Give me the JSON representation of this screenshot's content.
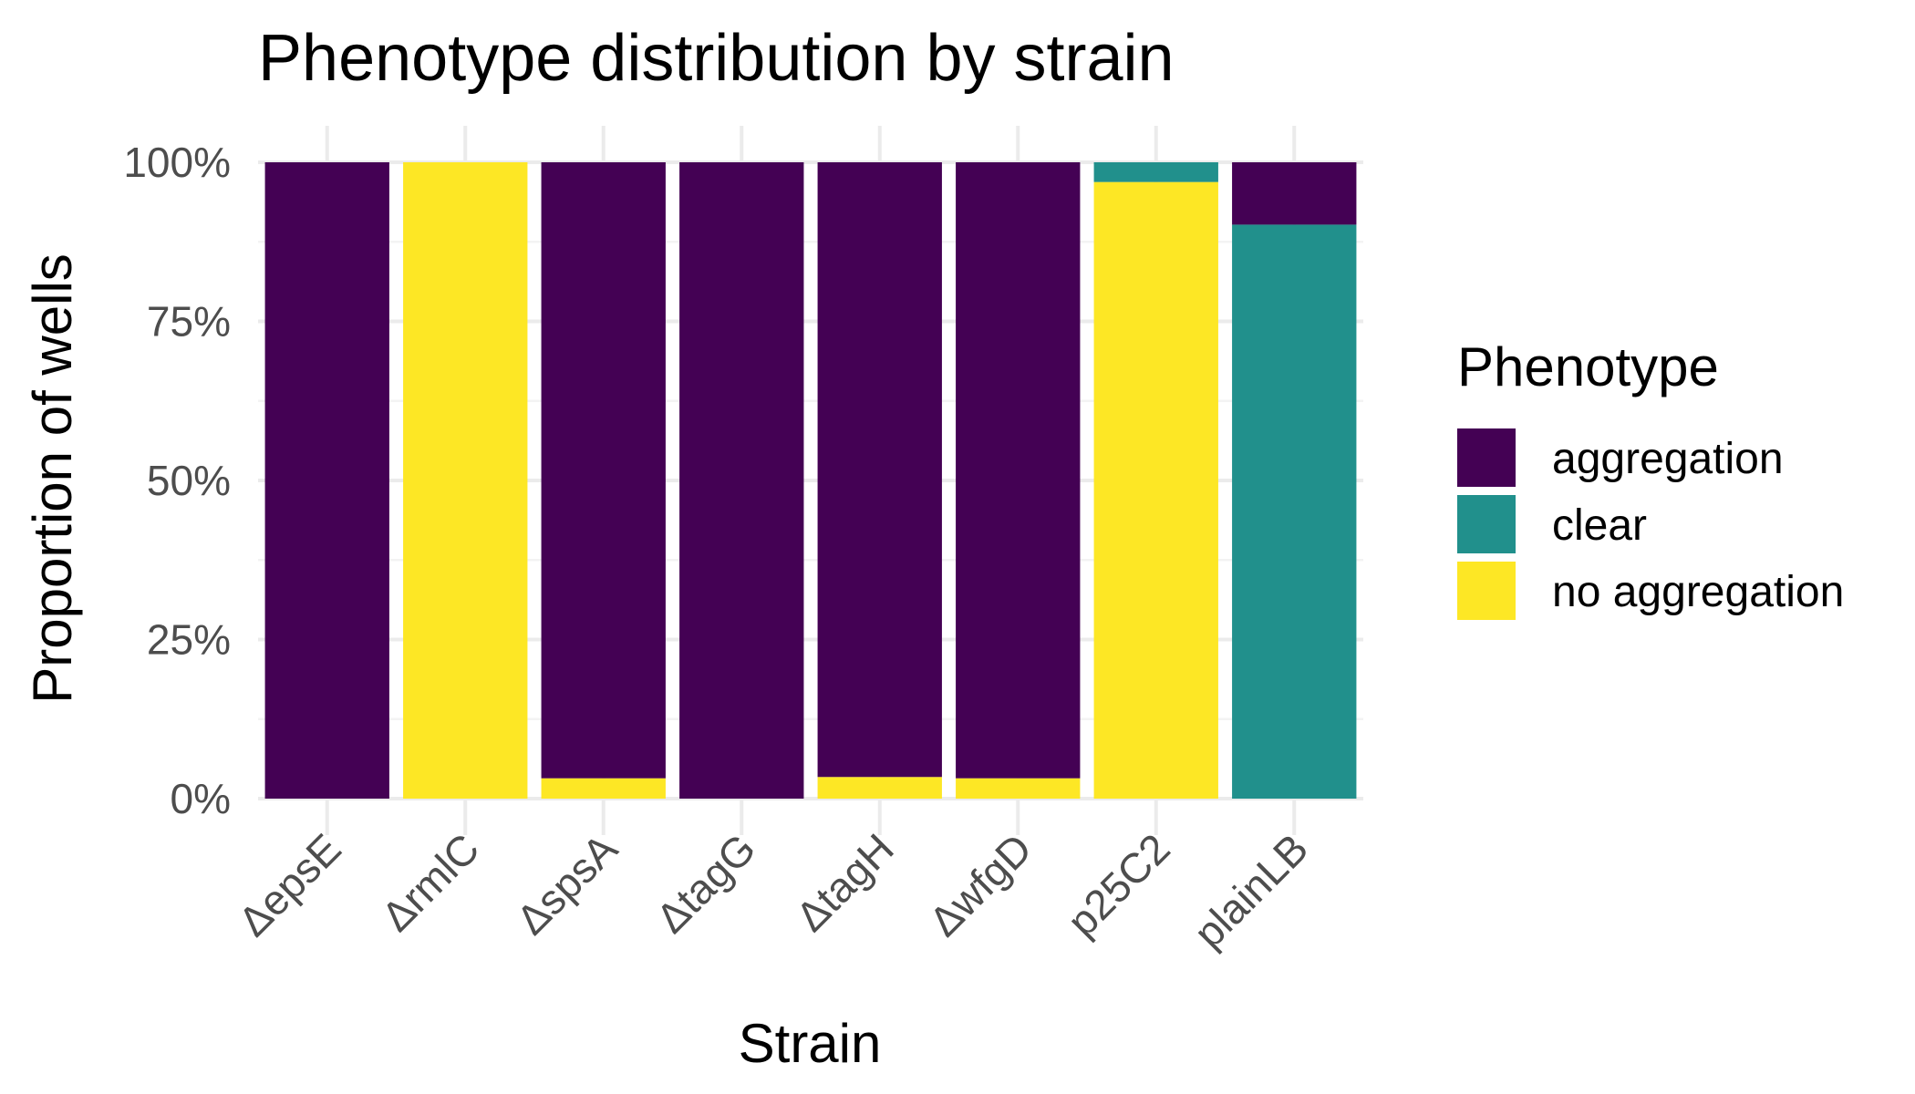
{
  "chart_data": {
    "type": "bar",
    "stacked": true,
    "title": "Phenotype distribution by strain",
    "xlabel": "Strain",
    "ylabel": "Proportion of wells",
    "ylim": [
      0,
      1
    ],
    "y_ticks": [
      "0%",
      "25%",
      "50%",
      "75%",
      "100%"
    ],
    "y_tick_values": [
      0,
      0.25,
      0.5,
      0.75,
      1.0
    ],
    "grid": true,
    "legend": {
      "title": "Phenotype",
      "placement": "right"
    },
    "categories": [
      "ΔepsE",
      "ΔrmlC",
      "ΔspsA",
      "ΔtagG",
      "ΔtagH",
      "ΔwfgD",
      "p25C2",
      "plainLB"
    ],
    "series": [
      {
        "name": "aggregation",
        "color": "#440154",
        "values": [
          1.0,
          0.0,
          0.968,
          1.0,
          0.966,
          0.968,
          0.0,
          0.098
        ]
      },
      {
        "name": "clear",
        "color": "#21908C",
        "values": [
          0.0,
          0.0,
          0.0,
          0.0,
          0.0,
          0.0,
          0.031,
          0.902
        ]
      },
      {
        "name": "no aggregation",
        "color": "#FDE725",
        "values": [
          0.0,
          1.0,
          0.032,
          0.0,
          0.034,
          0.032,
          0.969,
          0.0
        ]
      }
    ]
  }
}
